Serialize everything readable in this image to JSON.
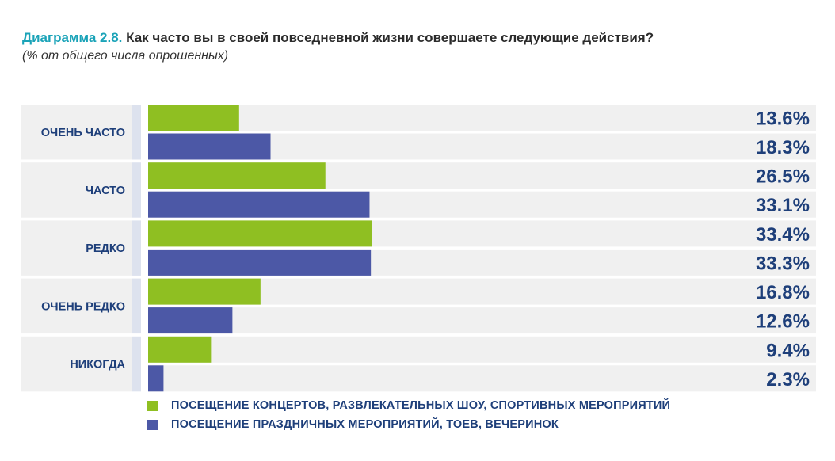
{
  "title": {
    "number": "Диаграмма 2.8.",
    "text": "Как часто вы в своей повседневной жизни совершаете следующие действия?",
    "subtitle": "(% от общего числа опрошенных)"
  },
  "colors": {
    "series1": "#8fbf22",
    "series2": "#4c58a6",
    "track": "#f0f0f0",
    "category_bg": "#f0f0f0",
    "divider": "#dde2ee",
    "value_text": "#1e3f7a",
    "category_text": "#1e3f7a",
    "title_accent": "#1aa3b8"
  },
  "chart_data": {
    "type": "bar",
    "orientation": "horizontal",
    "categories": [
      "ОЧЕНЬ ЧАСТО",
      "ЧАСТО",
      "РЕДКО",
      "ОЧЕНЬ РЕДКО",
      "НИКОГДА"
    ],
    "series": [
      {
        "name": "ПОСЕЩЕНИЕ КОНЦЕРТОВ, РАЗВЛЕКАТЕЛЬНЫХ ШОУ, СПОРТИВНЫХ МЕРОПРИЯТИЙ",
        "values": [
          13.6,
          26.5,
          33.4,
          16.8,
          9.4
        ]
      },
      {
        "name": "ПОСЕЩЕНИЕ ПРАЗДНИЧНЫХ МЕРОПРИЯТИЙ, ТОЕВ, ВЕЧЕРИНОК",
        "values": [
          18.3,
          33.1,
          33.3,
          12.6,
          2.3
        ]
      }
    ],
    "value_labels": [
      [
        "13.6%",
        "26.5%",
        "33.4%",
        "16.8%",
        "9.4%"
      ],
      [
        "18.3%",
        "33.1%",
        "33.3%",
        "12.6%",
        "2.3%"
      ]
    ],
    "legend_position": "bottom",
    "grid": false
  }
}
